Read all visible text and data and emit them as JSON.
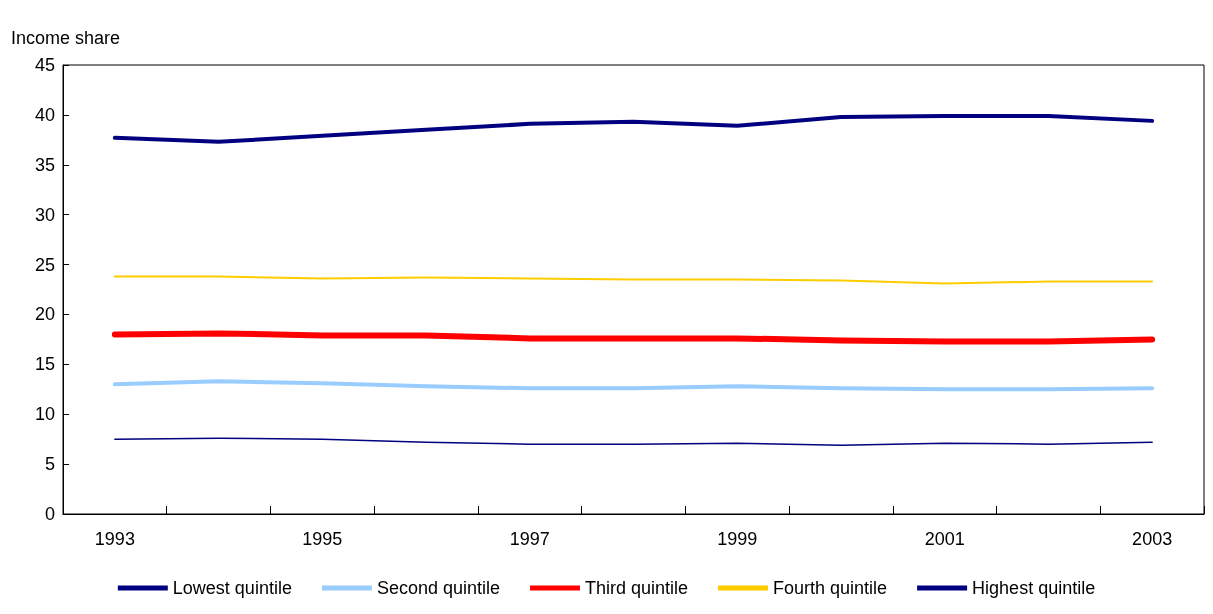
{
  "chart_data": {
    "type": "line",
    "ylabel": "Income share",
    "categories": [
      "1993",
      null,
      "1995",
      null,
      "1997",
      null,
      "1999",
      null,
      "2001",
      null,
      "2003"
    ],
    "series": [
      {
        "name": "Lowest quintile",
        "color": "#000080",
        "values": [
          7.5,
          7.6,
          7.5,
          7.2,
          7.0,
          7.0,
          7.1,
          6.9,
          7.1,
          7.0,
          7.2
        ]
      },
      {
        "name": "Second quintile",
        "color": "#99ccff",
        "values": [
          13.0,
          13.3,
          13.1,
          12.8,
          12.6,
          12.6,
          12.8,
          12.6,
          12.5,
          12.5,
          12.6
        ]
      },
      {
        "name": "Third quintile",
        "color": "#ff0000",
        "values": [
          18.0,
          18.1,
          17.9,
          17.9,
          17.6,
          17.6,
          17.6,
          17.4,
          17.3,
          17.3,
          17.5
        ]
      },
      {
        "name": "Fourth quintile",
        "color": "#ffcc00",
        "values": [
          23.8,
          23.8,
          23.6,
          23.7,
          23.6,
          23.5,
          23.5,
          23.4,
          23.1,
          23.3,
          23.3
        ]
      },
      {
        "name": "Highest quintile",
        "color": "#000080",
        "values": [
          37.7,
          37.3,
          37.9,
          38.5,
          39.1,
          39.3,
          38.9,
          39.8,
          39.9,
          39.9,
          39.4
        ]
      }
    ],
    "ylim": [
      0,
      45
    ],
    "yticks": [
      0,
      5,
      10,
      15,
      20,
      25,
      30,
      35,
      40,
      45
    ],
    "grid": false,
    "legend": "bottom",
    "marker": "none",
    "line_style": "solid"
  }
}
